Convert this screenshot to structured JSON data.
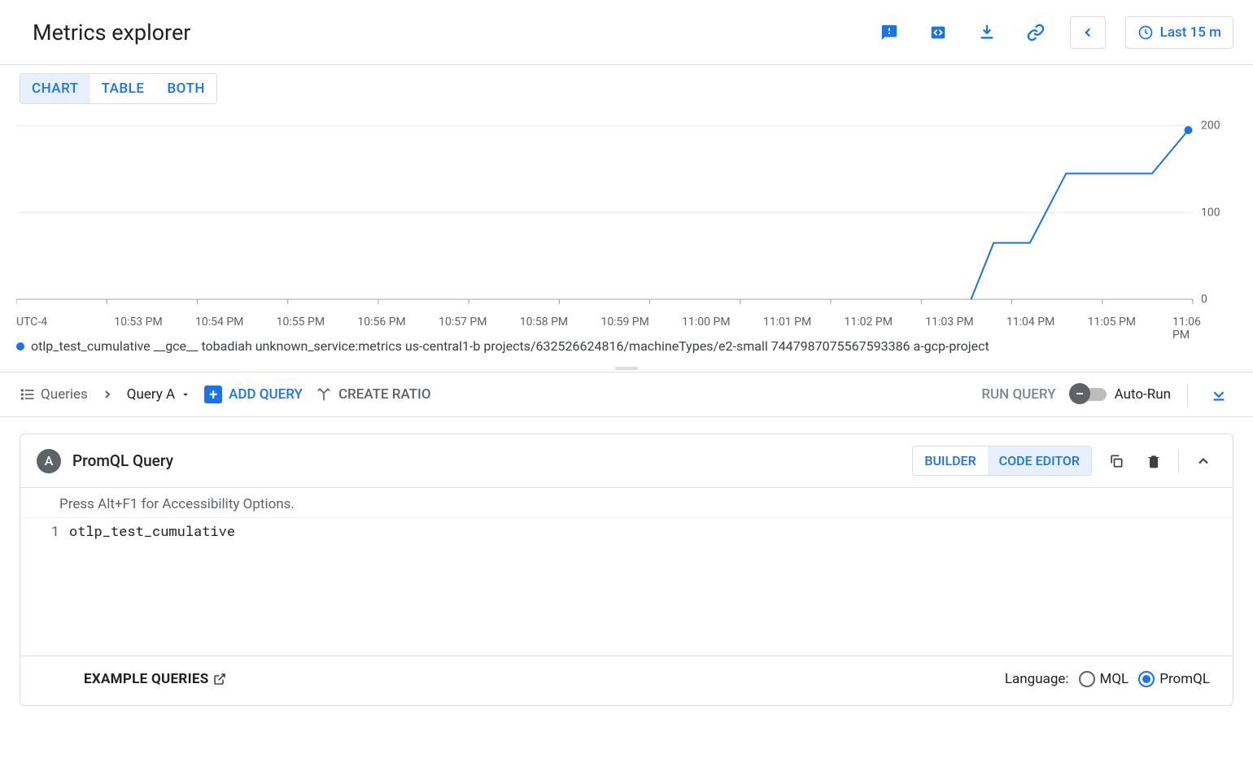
{
  "header": {
    "title": "Metrics explorer",
    "time_range_label": "Last 15 m"
  },
  "view_tabs": {
    "chart": "CHART",
    "table": "TABLE",
    "both": "BOTH",
    "active": "chart"
  },
  "chart": {
    "type": "line",
    "timezone": "UTC-4",
    "x_ticks": [
      "10:53 PM",
      "10:54 PM",
      "10:55 PM",
      "10:56 PM",
      "10:57 PM",
      "10:58 PM",
      "10:59 PM",
      "11:00 PM",
      "11:01 PM",
      "11:02 PM",
      "11:03 PM",
      "11:04 PM",
      "11:05 PM",
      "11:06 PM"
    ],
    "y_ticks": [
      0,
      100,
      200
    ],
    "ylim": [
      0,
      225
    ],
    "series_color": "#1a73e8",
    "grid_color": "#e8eaed",
    "axis_color": "#9aa0a6",
    "background_color": "#ffffff",
    "line_width": 2,
    "marker_radius": 5,
    "data_points": [
      {
        "t": 10.55,
        "v": 0
      },
      {
        "t": 10.8,
        "v": 65
      },
      {
        "t": 11.2,
        "v": 65
      },
      {
        "t": 11.6,
        "v": 145
      },
      {
        "t": 12.55,
        "v": 145
      },
      {
        "t": 12.95,
        "v": 195
      }
    ],
    "x_domain_units": 13
  },
  "legend": {
    "text": "otlp_test_cumulative __gce__ tobadiah unknown_service:metrics us-central1-b projects/632526624816/machineTypes/e2-small 7447987075567593386 a-gcp-project"
  },
  "query_toolbar": {
    "breadcrumb_queries": "Queries",
    "selected_query": "Query A",
    "add_query": "ADD QUERY",
    "create_ratio": "CREATE RATIO",
    "run_query": "RUN QUERY",
    "auto_run": "Auto-Run"
  },
  "query_card": {
    "badge": "A",
    "title": "PromQL Query",
    "builder": "BUILDER",
    "code_editor": "CODE EDITOR",
    "a11y_hint": "Press Alt+F1 for Accessibility Options.",
    "line_number": "1",
    "code": "otlp_test_cumulative",
    "example_queries": "EXAMPLE QUERIES",
    "language_label": "Language:",
    "mql": "MQL",
    "promql": "PromQL",
    "selected_language": "promql"
  },
  "colors": {
    "primary": "#1a73e8",
    "text": "#202124",
    "muted": "#5f6368",
    "border": "#dadce0"
  }
}
